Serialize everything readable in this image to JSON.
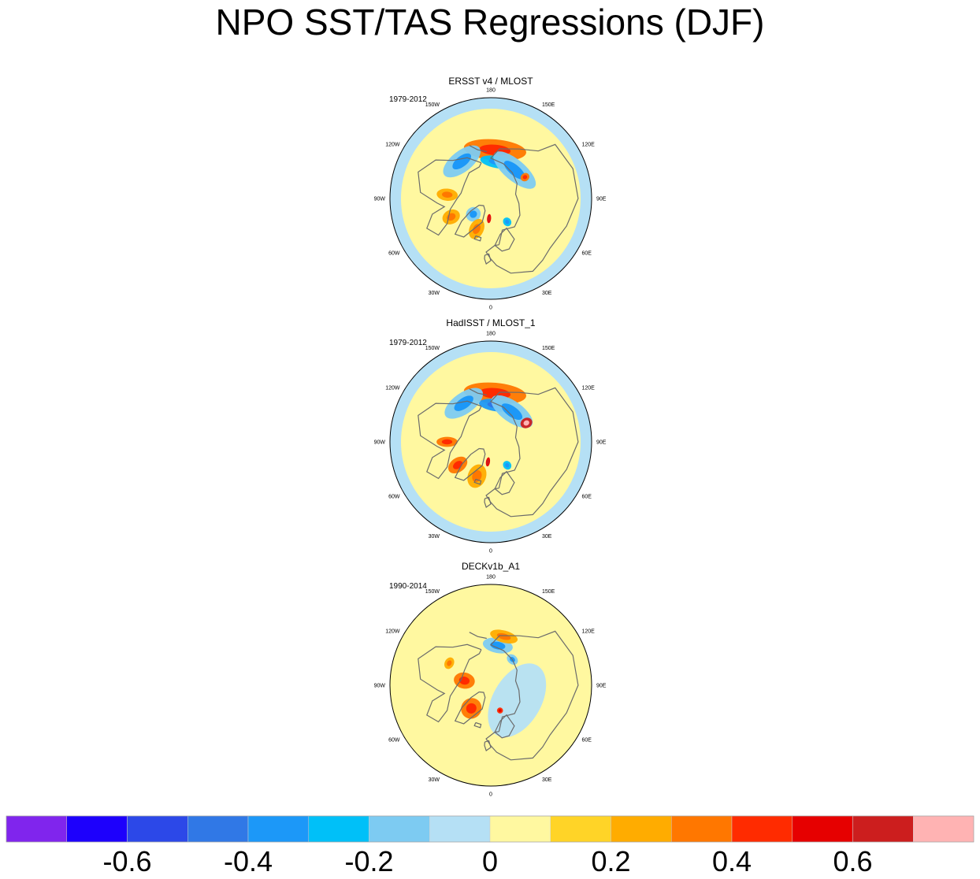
{
  "title": "NPO SST/TAS Regressions (DJF)",
  "chart_data": {
    "type": "polar-map-panels",
    "title": "NPO SST/TAS Regressions (DJF)",
    "panels": [
      {
        "name": "ERSST v4 / MLOST",
        "years": "1979-2012",
        "features": [
          {
            "value": 0.3,
            "lon": 175,
            "colat": 29,
            "a": 7,
            "b": 31
          },
          {
            "value": -0.3,
            "lon": 170,
            "colat": 22,
            "a": 4,
            "b": 17
          },
          {
            "value": -0.2,
            "lon": 140,
            "colat": 22,
            "a": 7,
            "b": 26
          },
          {
            "value": -0.2,
            "lon": -142,
            "colat": 28,
            "a": 7,
            "b": 22
          },
          {
            "value": 0.3,
            "lon": 122,
            "colat": 24,
            "a": 3,
            "b": 4
          },
          {
            "value": 0.2,
            "lon": -95,
            "colat": 26,
            "a": 7,
            "b": 6
          },
          {
            "value": 0.2,
            "lon": -65,
            "colat": 26,
            "a": 6,
            "b": 7
          },
          {
            "value": -0.2,
            "lon": -48,
            "colat": 14,
            "a": 5,
            "b": 7
          },
          {
            "value": 0.5,
            "lon": -5,
            "colat": 12,
            "a": 3,
            "b": 2
          },
          {
            "value": -0.3,
            "lon": 35,
            "colat": 17,
            "a": 3,
            "b": 4
          },
          {
            "value": 0.2,
            "lon": -25,
            "colat": 20,
            "a": 7,
            "b": 7
          }
        ]
      },
      {
        "name": "HadISST / MLOST_1",
        "years": "1979-2012",
        "features": [
          {
            "value": 0.3,
            "lon": 175,
            "colat": 29,
            "a": 7,
            "b": 31
          },
          {
            "value": -0.4,
            "lon": 172,
            "colat": 22,
            "a": 4,
            "b": 17
          },
          {
            "value": -0.2,
            "lon": 145,
            "colat": 22,
            "a": 7,
            "b": 24
          },
          {
            "value": -0.2,
            "lon": -145,
            "colat": 28,
            "a": 7,
            "b": 22
          },
          {
            "value": 0.6,
            "lon": 118,
            "colat": 24,
            "a": 4,
            "b": 5
          },
          {
            "value": 0.3,
            "lon": -90,
            "colat": 26,
            "a": 7,
            "b": 5
          },
          {
            "value": 0.3,
            "lon": -55,
            "colat": 24,
            "a": 7,
            "b": 7
          },
          {
            "value": 0.5,
            "lon": -8,
            "colat": 12,
            "a": 3,
            "b": 2
          },
          {
            "value": -0.3,
            "lon": 35,
            "colat": 17,
            "a": 3,
            "b": 4
          },
          {
            "value": 0.2,
            "lon": -22,
            "colat": 22,
            "a": 8,
            "b": 9
          }
        ]
      },
      {
        "name": "DECKv1b_A1",
        "years": "1990-2014",
        "features": [
          {
            "value": -0.1,
            "lon": 60,
            "colat": 18,
            "a": 16,
            "b": 40
          },
          {
            "value": -0.2,
            "lon": 170,
            "colat": 24,
            "a": 5,
            "b": 15
          },
          {
            "value": 0.2,
            "lon": 165,
            "colat": 30,
            "a": 4,
            "b": 14
          },
          {
            "value": 0.3,
            "lon": -100,
            "colat": 16,
            "a": 7,
            "b": 8
          },
          {
            "value": 0.3,
            "lon": -40,
            "colat": 18,
            "a": 7,
            "b": 10
          },
          {
            "value": 0.2,
            "lon": -118,
            "colat": 28,
            "a": 3,
            "b": 6
          },
          {
            "value": 0.4,
            "lon": 20,
            "colat": 16,
            "a": 2,
            "b": 3
          },
          {
            "value": -0.2,
            "lon": 140,
            "colat": 20,
            "a": 3,
            "b": 6
          }
        ]
      }
    ],
    "longitude_labels": [
      "180",
      "150E",
      "120E",
      "90E",
      "60E",
      "30E",
      "0",
      "30W",
      "60W",
      "90W",
      "120W",
      "150W"
    ],
    "colorbar": {
      "levels": [
        -0.7,
        -0.6,
        -0.5,
        -0.4,
        -0.3,
        -0.2,
        -0.1,
        0,
        0.1,
        0.2,
        0.3,
        0.4,
        0.5,
        0.6,
        0.7
      ],
      "colors": [
        "#8025ed",
        "#1d00fc",
        "#2c48e8",
        "#3078e6",
        "#1c98f8",
        "#00c0f8",
        "#7dcbf2",
        "#b5e0f5",
        "#fff8a0",
        "#ffd427",
        "#ffac00",
        "#ff7700",
        "#ff2b00",
        "#e60000",
        "#cc1e1e",
        "#ffb3b3"
      ],
      "tick_labels": [
        "-0.6",
        "-0.4",
        "-0.2",
        "0",
        "0.2",
        "0.4",
        "0.6"
      ],
      "tick_values": [
        -0.6,
        -0.4,
        -0.2,
        0,
        0.2,
        0.4,
        0.6
      ]
    }
  }
}
